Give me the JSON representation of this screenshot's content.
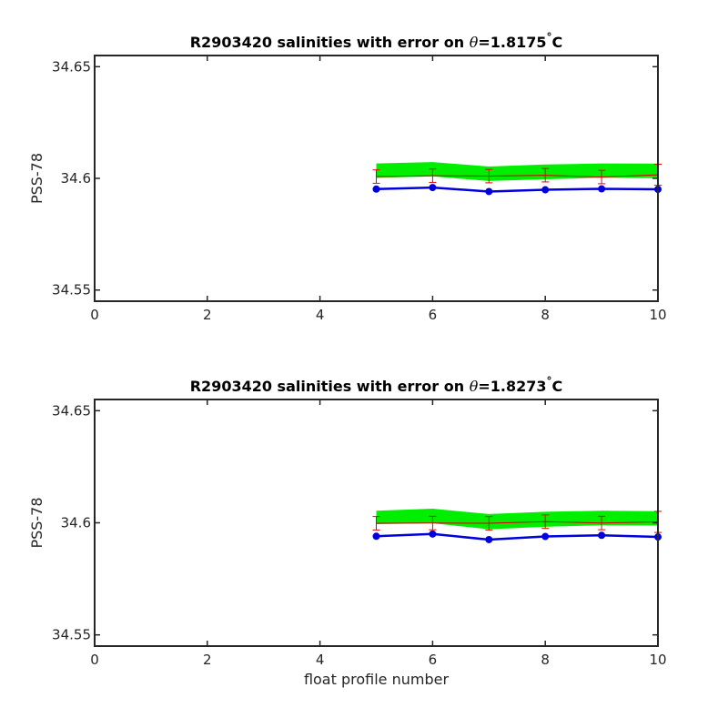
{
  "chart_data": [
    {
      "type": "line",
      "title_prefix": "R2903420 salinities with error on ",
      "title_theta": "θ",
      "title_value": "=1.8175",
      "title_degree": "°",
      "title_unit": "C",
      "xlabel": "",
      "ylabel": "PSS-78",
      "xlim": [
        0,
        10
      ],
      "ylim": [
        34.545,
        34.655
      ],
      "x_ticks": [
        0,
        2,
        4,
        6,
        8,
        10
      ],
      "x_tick_labels": [
        "0",
        "2",
        "4",
        "6",
        "8",
        "10"
      ],
      "y_ticks": [
        34.55,
        34.6,
        34.65
      ],
      "y_tick_labels": [
        "34.55",
        "34.6",
        "34.65"
      ],
      "grid": false,
      "x": [
        5,
        6,
        7,
        8,
        9,
        10
      ],
      "band_upper": [
        34.6067,
        34.6073,
        34.6053,
        34.6062,
        34.6067,
        34.6066
      ],
      "band_lower": [
        34.6002,
        34.6009,
        34.5988,
        34.5996,
        34.6003,
        34.6001
      ],
      "calibrated": [
        34.6008,
        34.6012,
        34.601,
        34.6014,
        34.6006,
        34.6016
      ],
      "error": [
        0.003,
        0.003,
        0.003,
        0.003,
        0.003,
        0.0047
      ],
      "float_values": [
        34.5952,
        34.5959,
        34.5941,
        34.5949,
        34.5953,
        34.5951
      ],
      "colors": {
        "band": "#00ee00",
        "calibrated": "#cc0000",
        "error": "#ee0000",
        "float": "#0000dd"
      }
    },
    {
      "type": "line",
      "title_prefix": "R2903420 salinities with error on ",
      "title_theta": "θ",
      "title_value": "=1.8273",
      "title_degree": "°",
      "title_unit": "C",
      "xlabel": "float profile number",
      "ylabel": "PSS-78",
      "xlim": [
        0,
        10
      ],
      "ylim": [
        34.545,
        34.655
      ],
      "x_ticks": [
        0,
        2,
        4,
        6,
        8,
        10
      ],
      "x_tick_labels": [
        "0",
        "2",
        "4",
        "6",
        "8",
        "10"
      ],
      "y_ticks": [
        34.55,
        34.6,
        34.65
      ],
      "y_tick_labels": [
        "34.55",
        "34.6",
        "34.65"
      ],
      "grid": false,
      "x": [
        5,
        6,
        7,
        8,
        9,
        10
      ],
      "band_upper": [
        34.6054,
        34.6063,
        34.6039,
        34.6049,
        34.6054,
        34.6052
      ],
      "band_lower": [
        34.5994,
        34.5998,
        34.5971,
        34.5982,
        34.5989,
        34.5988
      ],
      "calibrated": [
        34.5998,
        34.5999,
        34.5998,
        34.6005,
        34.5999,
        34.6004
      ],
      "error": [
        0.003,
        0.003,
        0.003,
        0.003,
        0.003,
        0.0047
      ],
      "float_values": [
        34.594,
        34.595,
        34.5925,
        34.5939,
        34.5944,
        34.5937
      ],
      "colors": {
        "band": "#00ee00",
        "calibrated": "#cc0000",
        "error": "#ee0000",
        "float": "#0000dd"
      }
    }
  ]
}
